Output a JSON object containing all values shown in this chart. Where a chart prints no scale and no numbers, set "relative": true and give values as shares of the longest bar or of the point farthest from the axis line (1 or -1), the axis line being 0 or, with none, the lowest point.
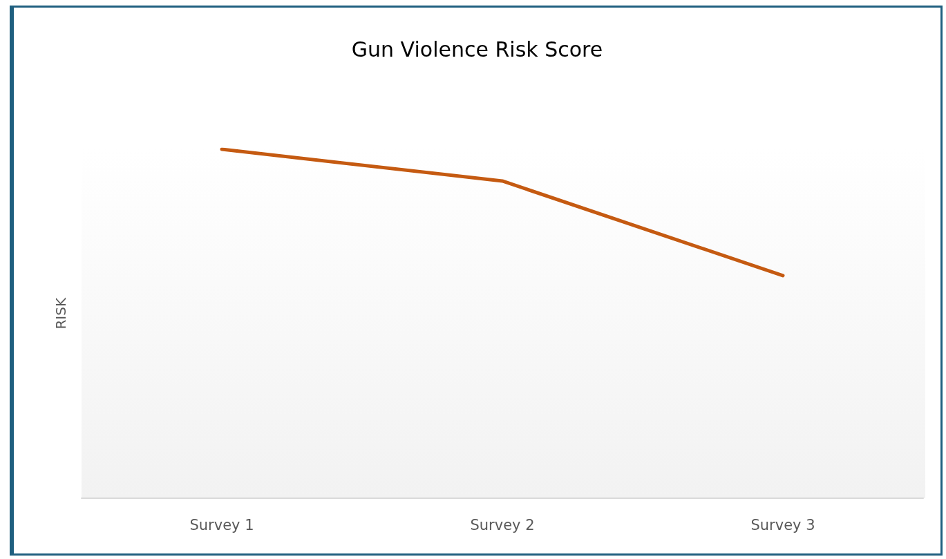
{
  "chart_data": {
    "type": "line",
    "title": "Gun Violence Risk Score",
    "ylabel": "RISK",
    "categories": [
      "Survey 1",
      "Survey 2",
      "Survey 3"
    ],
    "relative": true,
    "series": [
      {
        "color": "#c55a11",
        "values": [
          1,
          0.909,
          0.638
        ]
      }
    ],
    "marker": "none",
    "line_style": "solid",
    "grid": false
  }
}
